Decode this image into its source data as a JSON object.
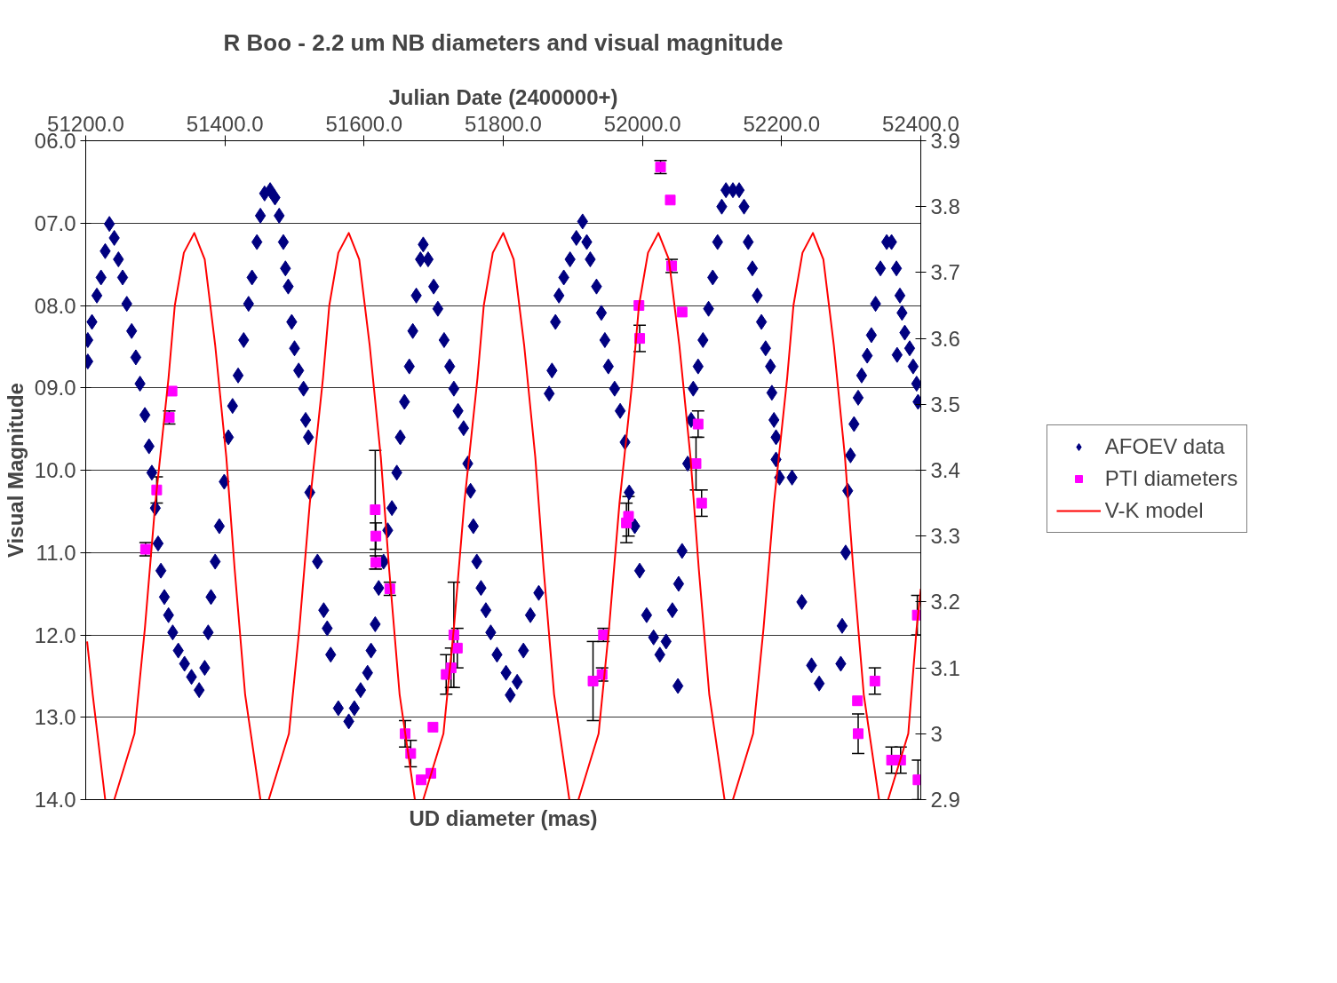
{
  "chart_data": {
    "type": "scatter",
    "title": "R Boo - 2.2 um NB diameters and visual magnitude",
    "x2label": "Julian Date (2400000+)",
    "ylabel": "Visual Magnitude",
    "annotations": [
      "UD diameter (mas)"
    ],
    "xlim": [
      51200,
      52400
    ],
    "xticks": [
      {
        "value": 51200,
        "label": "51200.0"
      },
      {
        "value": 51400,
        "label": "51400.0"
      },
      {
        "value": 51600,
        "label": "51600.0"
      },
      {
        "value": 51800,
        "label": "51800.0"
      },
      {
        "value": 52000,
        "label": "52000.0"
      },
      {
        "value": 52200,
        "label": "52200.0"
      },
      {
        "value": 52400,
        "label": "52400.0"
      }
    ],
    "ylim": [
      14,
      6
    ],
    "yticks": [
      {
        "value": 6,
        "label": "06.0"
      },
      {
        "value": 7,
        "label": "07.0"
      },
      {
        "value": 8,
        "label": "08.0"
      },
      {
        "value": 9,
        "label": "09.0"
      },
      {
        "value": 10,
        "label": "10.0"
      },
      {
        "value": 11,
        "label": "11.0"
      },
      {
        "value": 12,
        "label": "12.0"
      },
      {
        "value": 13,
        "label": "13.0"
      },
      {
        "value": 14,
        "label": "14.0"
      }
    ],
    "y2lim": [
      2.9,
      3.9
    ],
    "y2ticks": [
      2.9,
      3,
      3.1,
      3.2,
      3.3,
      3.4,
      3.5,
      3.6,
      3.7,
      3.8,
      3.9
    ],
    "grid": "y",
    "legend": "right",
    "series": [
      {
        "name": "AFOEV data",
        "marker": "diamond",
        "color": "#000080",
        "x": [
          51203,
          51203,
          51209,
          51216,
          51222,
          51228,
          51234,
          51241,
          51247,
          51253,
          51259,
          51266,
          51272,
          51278,
          51285,
          51291,
          51295,
          51300,
          51304,
          51308,
          51313,
          51319,
          51325,
          51333,
          51342,
          51352,
          51363,
          51371,
          51376,
          51380,
          51386,
          51392,
          51399,
          51405,
          51411,
          51419,
          51427,
          51434,
          51439,
          51446,
          51451,
          51457,
          51465,
          51472,
          51478,
          51484,
          51487,
          51491,
          51496,
          51500,
          51506,
          51513,
          51516,
          51520,
          51522,
          51533,
          51542,
          51547,
          51552,
          51563,
          51578,
          51586,
          51595,
          51605,
          51610,
          51616,
          51621,
          51628,
          51634,
          51640,
          51647,
          51652,
          51658,
          51665,
          51670,
          51675,
          51681,
          51685,
          51692,
          51700,
          51706,
          51715,
          51723,
          51729,
          51735,
          51743,
          51749,
          51753,
          51757,
          51762,
          51768,
          51775,
          51782,
          51791,
          51804,
          51810,
          51820,
          51829,
          51839,
          51851,
          51866,
          51870,
          51875,
          51880,
          51887,
          51896,
          51905,
          51914,
          51920,
          51925,
          51934,
          51941,
          51946,
          51951,
          51960,
          51968,
          51975,
          51981,
          51989,
          51996,
          52006,
          52016,
          52025,
          52034,
          52043,
          52051,
          52052,
          52057,
          52065,
          52070,
          52073,
          52080,
          52087,
          52095,
          52101,
          52108,
          52114,
          52120,
          52130,
          52139,
          52146,
          52152,
          52158,
          52165,
          52171,
          52177,
          52184,
          52186,
          52189,
          52192,
          52192,
          52197,
          52215,
          52229,
          52243,
          52254,
          52285,
          52287,
          52292,
          52295,
          52299,
          52304,
          52310,
          52315,
          52323,
          52329,
          52335,
          52342,
          52351,
          52358,
          52365,
          52366,
          52370,
          52373,
          52377,
          52384,
          52389,
          52394,
          52396
        ],
        "values": [
          8.42,
          8.68,
          8.2,
          7.88,
          7.66,
          7.34,
          7.01,
          7.18,
          7.44,
          7.66,
          7.98,
          8.31,
          8.63,
          8.95,
          9.33,
          9.71,
          10.03,
          10.46,
          10.89,
          11.22,
          11.54,
          11.76,
          11.97,
          12.19,
          12.35,
          12.51,
          12.67,
          12.4,
          11.97,
          11.54,
          11.11,
          10.68,
          10.14,
          9.6,
          9.22,
          8.85,
          8.42,
          7.98,
          7.66,
          7.23,
          6.91,
          6.64,
          6.6,
          6.69,
          6.91,
          7.23,
          7.55,
          7.77,
          8.2,
          8.52,
          8.79,
          9.01,
          9.39,
          9.6,
          10.27,
          11.11,
          11.7,
          11.92,
          12.24,
          12.89,
          13.05,
          12.89,
          12.67,
          12.46,
          12.19,
          11.87,
          11.43,
          11.11,
          10.73,
          10.46,
          10.03,
          9.6,
          9.17,
          8.74,
          8.31,
          7.88,
          7.44,
          7.26,
          7.44,
          7.77,
          8.04,
          8.42,
          8.74,
          9.01,
          9.28,
          9.49,
          9.92,
          10.25,
          10.68,
          11.11,
          11.43,
          11.7,
          11.97,
          12.24,
          12.46,
          12.73,
          12.57,
          12.19,
          11.76,
          11.49,
          9.07,
          8.79,
          8.2,
          7.88,
          7.66,
          7.44,
          7.18,
          6.98,
          7.23,
          7.44,
          7.77,
          8.09,
          8.42,
          8.74,
          9.01,
          9.28,
          9.66,
          10.27,
          10.68,
          11.22,
          11.76,
          12.03,
          12.24,
          12.08,
          11.7,
          12.62,
          11.38,
          10.98,
          9.92,
          9.39,
          9.01,
          8.74,
          8.42,
          8.04,
          7.66,
          7.23,
          6.8,
          6.6,
          6.6,
          6.6,
          6.8,
          7.23,
          7.55,
          7.88,
          8.2,
          8.52,
          8.74,
          9.06,
          9.39,
          9.6,
          9.87,
          10.09,
          10.09,
          11.6,
          12.37,
          12.59,
          12.35,
          11.89,
          11.0,
          10.25,
          9.82,
          9.44,
          9.12,
          8.85,
          8.61,
          8.36,
          7.98,
          7.55,
          7.23,
          7.23,
          7.55,
          8.6,
          7.88,
          8.09,
          8.33,
          8.52,
          8.74,
          8.95,
          9.17
        ]
      },
      {
        "name": "PTI diameters",
        "marker": "square",
        "color": "#ff00ff",
        "axis": "y2",
        "x": [
          51286,
          51302,
          51320,
          51324,
          51616,
          51617,
          51617,
          51637,
          51659,
          51667,
          51682,
          51696,
          51699,
          51718,
          51725,
          51729,
          51734,
          51929,
          51942,
          51944,
          51977,
          51980,
          51995,
          51996,
          52026,
          52040,
          52042,
          52057,
          52080,
          52077,
          52085,
          52309,
          52310,
          52334,
          52358,
          52371,
          52396,
          52395
        ],
        "values": [
          3.28,
          3.37,
          3.48,
          3.52,
          3.34,
          3.3,
          3.26,
          3.22,
          3.0,
          2.97,
          2.93,
          2.94,
          3.01,
          3.09,
          3.1,
          3.15,
          3.13,
          3.08,
          3.09,
          3.15,
          3.32,
          3.33,
          3.65,
          3.6,
          3.86,
          3.81,
          3.71,
          3.64,
          3.47,
          3.41,
          3.35,
          3.05,
          3.0,
          3.08,
          2.96,
          2.96,
          2.93,
          3.18
        ],
        "errors": [
          0.01,
          0.02,
          0.01,
          null,
          0.09,
          0.02,
          0.01,
          0.01,
          0.02,
          0.02,
          null,
          null,
          null,
          0.03,
          0.03,
          0.08,
          0.03,
          0.06,
          0.01,
          0.01,
          0.03,
          0.03,
          null,
          0.02,
          0.01,
          null,
          0.01,
          null,
          0.02,
          0.04,
          0.02,
          null,
          0.03,
          0.02,
          0.02,
          0.02,
          0.03,
          0.03
        ]
      },
      {
        "name": "V-K model",
        "type": "line",
        "line_style": "solid",
        "color": "#ff0000",
        "axis": "y2",
        "x": [
          51202,
          51210,
          51228,
          51234,
          51241,
          51270,
          51285,
          51300,
          51319,
          51328,
          51341,
          51356,
          51371,
          51386,
          51402,
          51414,
          51429,
          51451,
          51457,
          51463,
          51492,
          51507,
          51522,
          51541,
          51550,
          51563,
          51578,
          51593,
          51608,
          51624,
          51636,
          51651,
          51673,
          51679,
          51685,
          51714,
          51729,
          51744,
          51763,
          51772,
          51785,
          51800,
          51815,
          51830,
          51846,
          51858,
          51873,
          51895,
          51901,
          51908,
          51937,
          51952,
          51967,
          51986,
          51995,
          52008,
          52023,
          52038,
          52053,
          52069,
          52081,
          52096,
          52118,
          52124,
          52130,
          52159,
          52174,
          52189,
          52208,
          52217,
          52230,
          52245,
          52260,
          52275,
          52291,
          52303,
          52318,
          52340,
          52346,
          52353,
          52382,
          52394,
          52400
        ],
        "values": [
          3.14,
          3.06,
          2.9,
          null,
          2.9,
          3.0,
          3.16,
          3.35,
          3.54,
          3.65,
          3.73,
          3.76,
          3.72,
          3.59,
          3.42,
          3.25,
          3.06,
          2.9,
          null,
          2.9,
          3.0,
          3.16,
          3.35,
          3.54,
          3.65,
          3.73,
          3.76,
          3.72,
          3.59,
          3.42,
          3.25,
          3.06,
          2.9,
          null,
          2.9,
          3.0,
          3.16,
          3.35,
          3.54,
          3.65,
          3.73,
          3.76,
          3.72,
          3.59,
          3.42,
          3.25,
          3.06,
          2.9,
          null,
          2.9,
          3.0,
          3.16,
          3.35,
          3.54,
          3.65,
          3.73,
          3.76,
          3.72,
          3.59,
          3.42,
          3.25,
          3.06,
          2.9,
          null,
          2.9,
          3.0,
          3.16,
          3.35,
          3.54,
          3.65,
          3.73,
          3.76,
          3.72,
          3.59,
          3.42,
          3.25,
          3.06,
          2.9,
          null,
          2.9,
          3.0,
          3.16,
          3.22
        ]
      }
    ]
  }
}
